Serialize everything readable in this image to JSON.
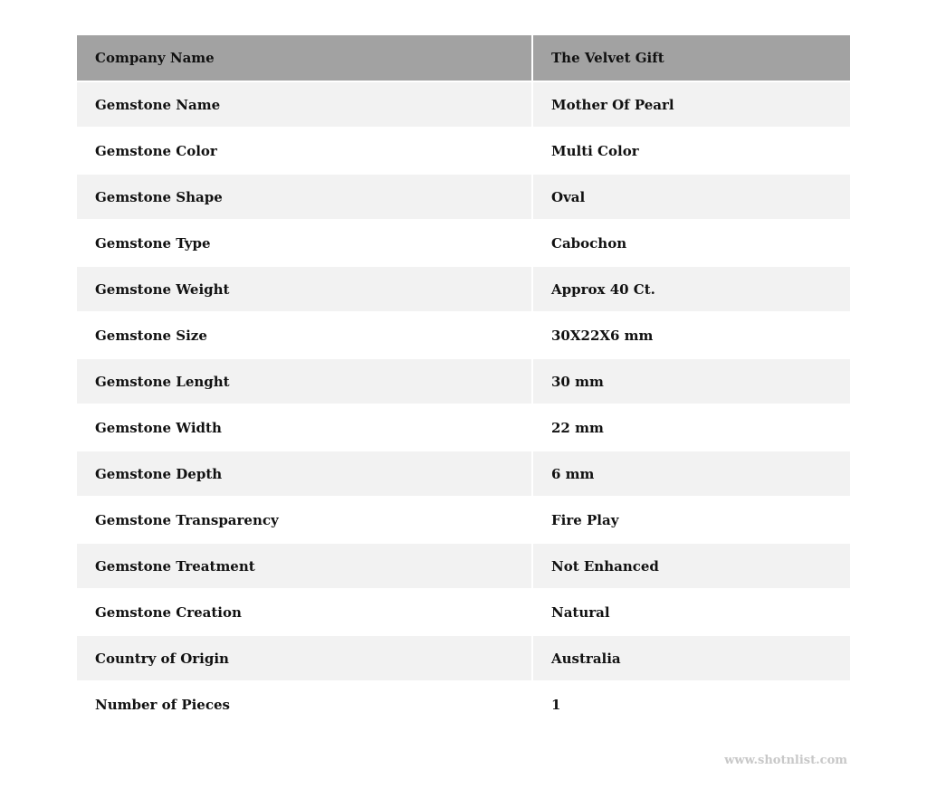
{
  "table": {
    "header": {
      "key": "Company Name",
      "value": "The Velvet Gift"
    },
    "rows": [
      {
        "key": "Gemstone Name",
        "value": "Mother Of Pearl"
      },
      {
        "key": "Gemstone Color",
        "value": "Multi Color"
      },
      {
        "key": "Gemstone Shape",
        "value": "Oval"
      },
      {
        "key": "Gemstone Type",
        "value": "Cabochon"
      },
      {
        "key": "Gemstone Weight",
        "value": "Approx 40 Ct."
      },
      {
        "key": "Gemstone Size",
        "value": "30X22X6 mm"
      },
      {
        "key": "Gemstone Lenght",
        "value": "30 mm"
      },
      {
        "key": "Gemstone Width",
        "value": "22 mm"
      },
      {
        "key": "Gemstone Depth",
        "value": "6 mm"
      },
      {
        "key": "Gemstone Transparency",
        "value": "Fire Play"
      },
      {
        "key": "Gemstone Treatment",
        "value": "Not Enhanced"
      },
      {
        "key": "Gemstone Creation",
        "value": "Natural"
      },
      {
        "key": "Country of Origin",
        "value": "Australia"
      },
      {
        "key": "Number of Pieces",
        "value": "1"
      }
    ]
  },
  "watermark": "www.shotnlist.com",
  "colors": {
    "header_bg": "#a2a2a2",
    "stripe_bg": "#f2f2f2"
  }
}
